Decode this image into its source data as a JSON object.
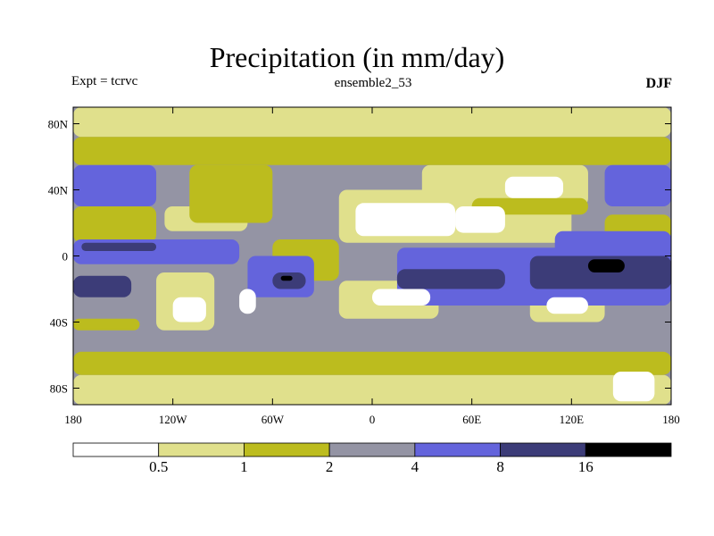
{
  "chart_data": {
    "type": "heatmap",
    "title": "Precipitation (in mm/day)",
    "left_label": "Expt = tcrvc",
    "center_label": "ensemble2_53",
    "right_label": "DJF",
    "variable_units": "mm/day",
    "x_axis": {
      "range": [
        -180,
        180
      ],
      "ticks": [
        {
          "value": -180,
          "label": "180"
        },
        {
          "value": -120,
          "label": "120W"
        },
        {
          "value": -60,
          "label": "60W"
        },
        {
          "value": 0,
          "label": "0"
        },
        {
          "value": 60,
          "label": "60E"
        },
        {
          "value": 120,
          "label": "120E"
        },
        {
          "value": 180,
          "label": "180"
        }
      ]
    },
    "y_axis": {
      "range": [
        -90,
        90
      ],
      "ticks": [
        {
          "value": 80,
          "label": "80N"
        },
        {
          "value": 40,
          "label": "40N"
        },
        {
          "value": 0,
          "label": "0"
        },
        {
          "value": -40,
          "label": "40S"
        },
        {
          "value": -80,
          "label": "80S"
        }
      ]
    },
    "colorbar": {
      "levels": [
        "0.5",
        "1",
        "2",
        "4",
        "8",
        "16"
      ],
      "colors": [
        "#ffffff",
        "#e0e08c",
        "#bcbc1e",
        "#9494a4",
        "#6464dc",
        "#3c3c78",
        "#000000"
      ]
    },
    "regions": [
      {
        "bin": 0,
        "lon": [
          -10,
          50
        ],
        "lat": [
          12,
          32
        ]
      },
      {
        "bin": 0,
        "lon": [
          50,
          80
        ],
        "lat": [
          14,
          30
        ]
      },
      {
        "bin": 0,
        "lon": [
          80,
          115
        ],
        "lat": [
          35,
          48
        ]
      },
      {
        "bin": 0,
        "lon": [
          0,
          35
        ],
        "lat": [
          -30,
          -20
        ]
      },
      {
        "bin": 0,
        "lon": [
          -120,
          -100
        ],
        "lat": [
          -40,
          -25
        ]
      },
      {
        "bin": 0,
        "lon": [
          -80,
          -70
        ],
        "lat": [
          -35,
          -20
        ]
      },
      {
        "bin": 0,
        "lon": [
          105,
          130
        ],
        "lat": [
          -35,
          -25
        ]
      },
      {
        "bin": 0,
        "lon": [
          145,
          170
        ],
        "lat": [
          -88,
          -70
        ]
      },
      {
        "bin": 1,
        "lon": [
          -20,
          120
        ],
        "lat": [
          8,
          40
        ]
      },
      {
        "bin": 1,
        "lon": [
          30,
          130
        ],
        "lat": [
          30,
          55
        ]
      },
      {
        "bin": 1,
        "lon": [
          -180,
          180
        ],
        "lat": [
          -90,
          -72
        ]
      },
      {
        "bin": 1,
        "lon": [
          -180,
          180
        ],
        "lat": [
          72,
          90
        ]
      },
      {
        "bin": 1,
        "lon": [
          -125,
          -75
        ],
        "lat": [
          15,
          30
        ]
      },
      {
        "bin": 1,
        "lon": [
          -130,
          -95
        ],
        "lat": [
          -45,
          -10
        ]
      },
      {
        "bin": 1,
        "lon": [
          -20,
          40
        ],
        "lat": [
          -38,
          -15
        ]
      },
      {
        "bin": 1,
        "lon": [
          95,
          140
        ],
        "lat": [
          -40,
          -18
        ]
      },
      {
        "bin": 2,
        "lon": [
          -180,
          180
        ],
        "lat": [
          -72,
          -58
        ]
      },
      {
        "bin": 2,
        "lon": [
          -180,
          180
        ],
        "lat": [
          55,
          72
        ]
      },
      {
        "bin": 2,
        "lon": [
          -180,
          -130
        ],
        "lat": [
          8,
          30
        ]
      },
      {
        "bin": 2,
        "lon": [
          -110,
          -60
        ],
        "lat": [
          20,
          55
        ]
      },
      {
        "bin": 2,
        "lon": [
          -60,
          -20
        ],
        "lat": [
          -15,
          10
        ]
      },
      {
        "bin": 2,
        "lon": [
          140,
          180
        ],
        "lat": [
          10,
          25
        ]
      },
      {
        "bin": 2,
        "lon": [
          60,
          130
        ],
        "lat": [
          25,
          35
        ]
      },
      {
        "bin": 2,
        "lon": [
          -180,
          -140
        ],
        "lat": [
          -45,
          -38
        ]
      },
      {
        "bin": 4,
        "lon": [
          -180,
          -130
        ],
        "lat": [
          30,
          55
        ]
      },
      {
        "bin": 4,
        "lon": [
          140,
          180
        ],
        "lat": [
          30,
          55
        ]
      },
      {
        "bin": 4,
        "lon": [
          -180,
          -80
        ],
        "lat": [
          -5,
          10
        ]
      },
      {
        "bin": 4,
        "lon": [
          -75,
          -35
        ],
        "lat": [
          -25,
          0
        ]
      },
      {
        "bin": 4,
        "lon": [
          15,
          180
        ],
        "lat": [
          -30,
          5
        ]
      },
      {
        "bin": 4,
        "lon": [
          110,
          180
        ],
        "lat": [
          0,
          15
        ]
      },
      {
        "bin": 5,
        "lon": [
          -180,
          -145
        ],
        "lat": [
          -25,
          -12
        ]
      },
      {
        "bin": 5,
        "lon": [
          -60,
          -40
        ],
        "lat": [
          -20,
          -10
        ]
      },
      {
        "bin": 5,
        "lon": [
          15,
          80
        ],
        "lat": [
          -20,
          -8
        ]
      },
      {
        "bin": 5,
        "lon": [
          95,
          180
        ],
        "lat": [
          -20,
          0
        ]
      },
      {
        "bin": 5,
        "lon": [
          -175,
          -130
        ],
        "lat": [
          3,
          8
        ]
      },
      {
        "bin": 6,
        "lon": [
          130,
          152
        ],
        "lat": [
          -10,
          -2
        ]
      },
      {
        "bin": 6,
        "lon": [
          -55,
          -48
        ],
        "lat": [
          -15,
          -12
        ]
      }
    ]
  }
}
